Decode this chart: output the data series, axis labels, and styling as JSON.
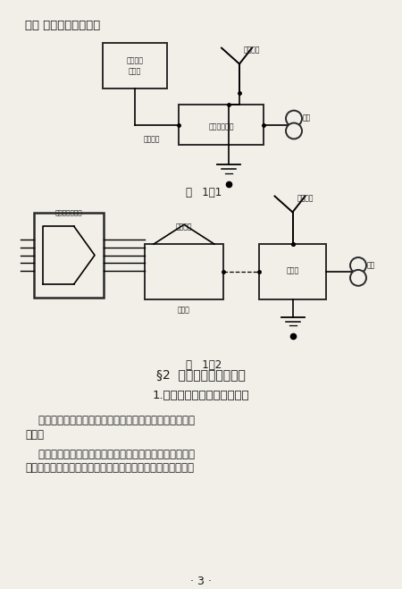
{
  "bg_color": "#f2efe9",
  "text_color": "#1a1a1a",
  "fig1_label": "图   1－1",
  "fig2_label": "图   1－2",
  "section_title": "§2  无線电接收的方向性",
  "subsection": "1.用垂直天线接收无線电訊号",
  "para1_line1": "    最简单的接收天线是垂直天機，它的最大特点是不具有方",
  "para1_line2": "向性。",
  "para2_line1": "    如果示标台的方向不同，而电力、波长、距离相同，在垂",
  "para2_line2": "直天线上所感应的电动势是相同的，也就是說垂直天线是沒有",
  "page_num": "· 3 ·",
  "top_text": "机、 辅助天线、耳机。"
}
